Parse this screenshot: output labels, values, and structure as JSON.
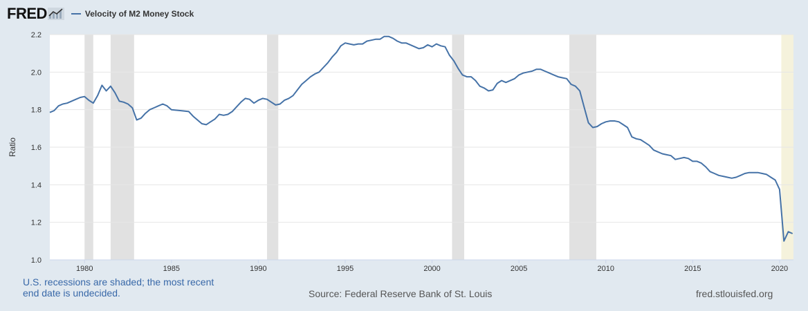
{
  "header": {
    "logo_text": "FRED",
    "legend_label": "Velocity of M2 Money Stock"
  },
  "footer": {
    "recession_note": "U.S. recessions are shaded; the most recent end date is undecided.",
    "source": "Source: Federal Reserve Bank of St. Louis",
    "site": "fred.stlouisfed.org"
  },
  "colors": {
    "line": "#4572a7",
    "recession": "#e1e1e1",
    "recession_current": "#f5f2dc",
    "plot_bg": "#ffffff",
    "page_bg": "#e1e9f0"
  },
  "chart_data": {
    "type": "line",
    "title": "Velocity of M2 Money Stock",
    "xlabel": "",
    "ylabel": "Ratio",
    "xlim": [
      1978.0,
      2020.8
    ],
    "ylim": [
      1.0,
      2.2
    ],
    "grid": true,
    "x_ticks": [
      1980,
      1985,
      1990,
      1995,
      2000,
      2005,
      2010,
      2015,
      2020
    ],
    "y_ticks": [
      1.0,
      1.2,
      1.4,
      1.6,
      1.8,
      2.0,
      2.2
    ],
    "recessions": [
      {
        "start": 1980.0,
        "end": 1980.5,
        "current": false
      },
      {
        "start": 1981.5,
        "end": 1982.85,
        "current": false
      },
      {
        "start": 1990.5,
        "end": 1991.15,
        "current": false
      },
      {
        "start": 2001.15,
        "end": 2001.85,
        "current": false
      },
      {
        "start": 2007.9,
        "end": 2009.45,
        "current": false
      },
      {
        "start": 2020.1,
        "end": 2020.8,
        "current": true
      }
    ],
    "series": [
      {
        "name": "Velocity of M2 Money Stock",
        "x": [
          1978.0,
          1978.25,
          1978.5,
          1978.75,
          1979.0,
          1979.25,
          1979.5,
          1979.75,
          1980.0,
          1980.25,
          1980.5,
          1980.75,
          1981.0,
          1981.25,
          1981.5,
          1981.75,
          1982.0,
          1982.25,
          1982.5,
          1982.75,
          1983.0,
          1983.25,
          1983.5,
          1983.75,
          1984.0,
          1984.25,
          1984.5,
          1984.75,
          1985.0,
          1985.5,
          1986.0,
          1986.25,
          1986.5,
          1986.75,
          1987.0,
          1987.25,
          1987.5,
          1987.75,
          1988.0,
          1988.25,
          1988.5,
          1988.75,
          1989.0,
          1989.25,
          1989.5,
          1989.75,
          1990.0,
          1990.25,
          1990.5,
          1990.75,
          1991.0,
          1991.25,
          1991.5,
          1991.75,
          1992.0,
          1992.25,
          1992.5,
          1992.75,
          1993.0,
          1993.25,
          1993.5,
          1993.75,
          1994.0,
          1994.25,
          1994.5,
          1994.75,
          1995.0,
          1995.25,
          1995.5,
          1995.75,
          1996.0,
          1996.25,
          1996.5,
          1996.75,
          1997.0,
          1997.25,
          1997.5,
          1997.75,
          1998.0,
          1998.25,
          1998.5,
          1998.75,
          1999.0,
          1999.25,
          1999.5,
          1999.75,
          2000.0,
          2000.25,
          2000.5,
          2000.75,
          2001.0,
          2001.25,
          2001.5,
          2001.75,
          2002.0,
          2002.25,
          2002.5,
          2002.75,
          2003.0,
          2003.25,
          2003.5,
          2003.75,
          2004.0,
          2004.25,
          2004.5,
          2004.75,
          2005.0,
          2005.25,
          2005.5,
          2005.75,
          2006.0,
          2006.25,
          2006.5,
          2006.75,
          2007.0,
          2007.25,
          2007.5,
          2007.75,
          2008.0,
          2008.25,
          2008.5,
          2008.75,
          2009.0,
          2009.25,
          2009.5,
          2009.75,
          2010.0,
          2010.25,
          2010.5,
          2010.75,
          2011.0,
          2011.25,
          2011.5,
          2011.75,
          2012.0,
          2012.25,
          2012.5,
          2012.75,
          2013.0,
          2013.25,
          2013.5,
          2013.75,
          2014.0,
          2014.25,
          2014.5,
          2014.75,
          2015.0,
          2015.25,
          2015.5,
          2015.75,
          2016.0,
          2016.25,
          2016.5,
          2016.75,
          2017.0,
          2017.25,
          2017.5,
          2017.75,
          2018.0,
          2018.25,
          2018.5,
          2018.75,
          2019.0,
          2019.25,
          2019.5,
          2019.75,
          2020.0,
          2020.25,
          2020.5,
          2020.75
        ],
        "values": [
          1.785,
          1.795,
          1.82,
          1.83,
          1.835,
          1.845,
          1.855,
          1.865,
          1.87,
          1.85,
          1.835,
          1.875,
          1.93,
          1.9,
          1.925,
          1.89,
          1.845,
          1.84,
          1.83,
          1.81,
          1.745,
          1.755,
          1.78,
          1.8,
          1.81,
          1.82,
          1.83,
          1.82,
          1.8,
          1.795,
          1.79,
          1.765,
          1.745,
          1.725,
          1.72,
          1.735,
          1.75,
          1.775,
          1.77,
          1.775,
          1.79,
          1.815,
          1.84,
          1.86,
          1.855,
          1.835,
          1.85,
          1.86,
          1.855,
          1.84,
          1.825,
          1.83,
          1.85,
          1.86,
          1.875,
          1.905,
          1.935,
          1.955,
          1.975,
          1.99,
          2.0,
          2.025,
          2.05,
          2.08,
          2.105,
          2.14,
          2.155,
          2.15,
          2.145,
          2.15,
          2.15,
          2.165,
          2.17,
          2.175,
          2.175,
          2.19,
          2.19,
          2.18,
          2.165,
          2.155,
          2.155,
          2.145,
          2.135,
          2.125,
          2.13,
          2.145,
          2.135,
          2.15,
          2.14,
          2.135,
          2.09,
          2.06,
          2.02,
          1.985,
          1.975,
          1.975,
          1.955,
          1.925,
          1.915,
          1.9,
          1.905,
          1.94,
          1.955,
          1.945,
          1.955,
          1.965,
          1.985,
          1.995,
          2.0,
          2.005,
          2.015,
          2.015,
          2.005,
          1.995,
          1.985,
          1.975,
          1.97,
          1.965,
          1.935,
          1.925,
          1.9,
          1.815,
          1.73,
          1.705,
          1.71,
          1.725,
          1.735,
          1.74,
          1.74,
          1.735,
          1.72,
          1.705,
          1.655,
          1.645,
          1.64,
          1.625,
          1.61,
          1.585,
          1.575,
          1.565,
          1.56,
          1.555,
          1.535,
          1.54,
          1.545,
          1.54,
          1.525,
          1.525,
          1.515,
          1.495,
          1.47,
          1.46,
          1.45,
          1.445,
          1.44,
          1.435,
          1.44,
          1.45,
          1.46,
          1.465,
          1.465,
          1.465,
          1.46,
          1.455,
          1.44,
          1.425,
          1.375,
          1.1,
          1.15,
          1.14
        ]
      }
    ]
  }
}
